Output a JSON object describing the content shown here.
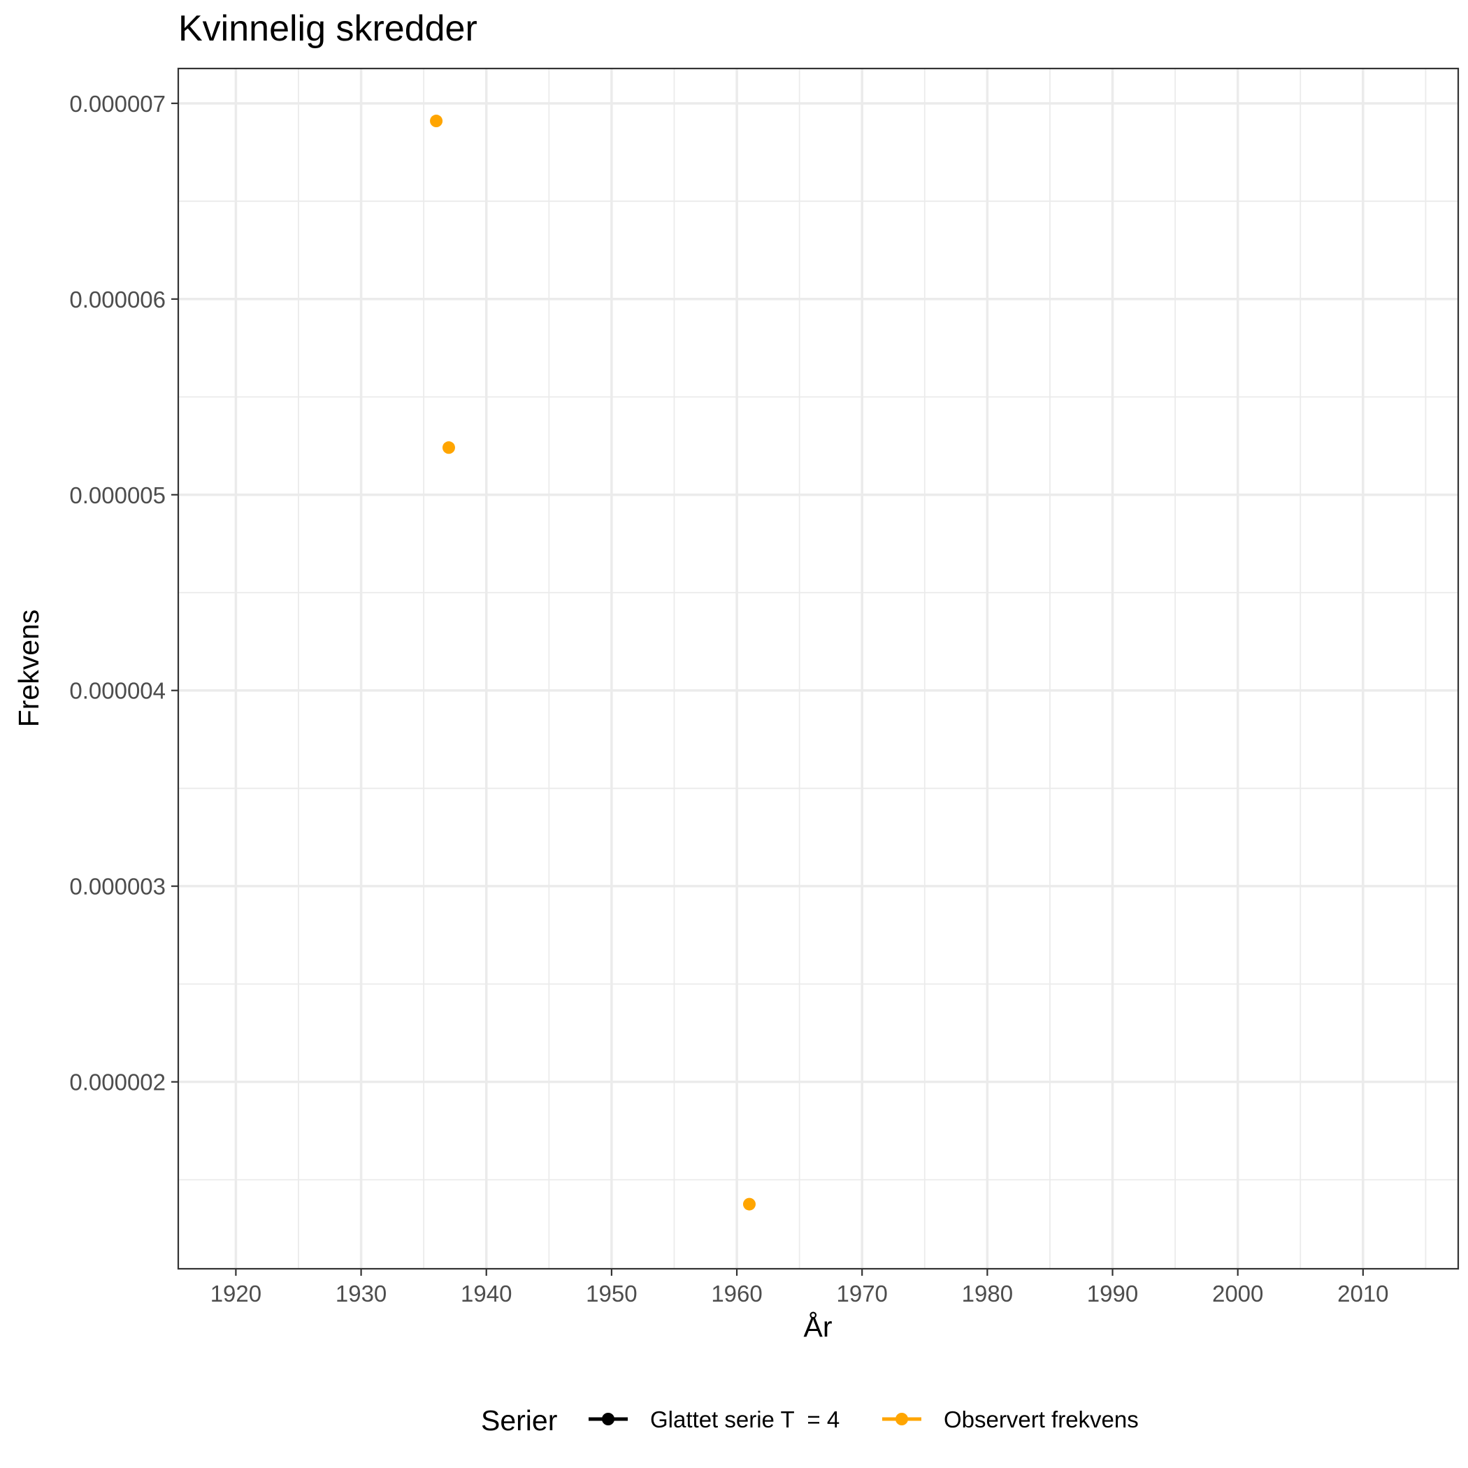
{
  "chart_data": {
    "type": "scatter",
    "title": "Kvinnelig skredder",
    "xlabel": "År",
    "ylabel": "Frekvens",
    "xlim": [
      1915.4,
      2017.6
    ],
    "ylim": [
      1.045e-06,
      7.178e-06
    ],
    "x_ticks": [
      1920,
      1930,
      1940,
      1950,
      1960,
      1970,
      1980,
      1990,
      2000,
      2010
    ],
    "x_tick_labels": [
      "1920",
      "1930",
      "1940",
      "1950",
      "1960",
      "1970",
      "1980",
      "1990",
      "2000",
      "2010"
    ],
    "y_ticks": [
      2e-06,
      3e-06,
      4e-06,
      5e-06,
      6e-06,
      7e-06
    ],
    "y_tick_labels": [
      "0.000002",
      "0.000003",
      "0.000004",
      "0.000005",
      "0.000006",
      "0.000007"
    ],
    "grid": true,
    "legend_position": "bottom",
    "legend_title": "Serier",
    "series": [
      {
        "name": "Glattet serie T  = 4",
        "color": "#000000",
        "x": [],
        "y": []
      },
      {
        "name": "Observert frekvens",
        "color": "#FFA500",
        "x": [
          1936,
          1937,
          1961
        ],
        "y": [
          6.91e-06,
          5.241e-06,
          1.375e-06
        ]
      }
    ]
  }
}
